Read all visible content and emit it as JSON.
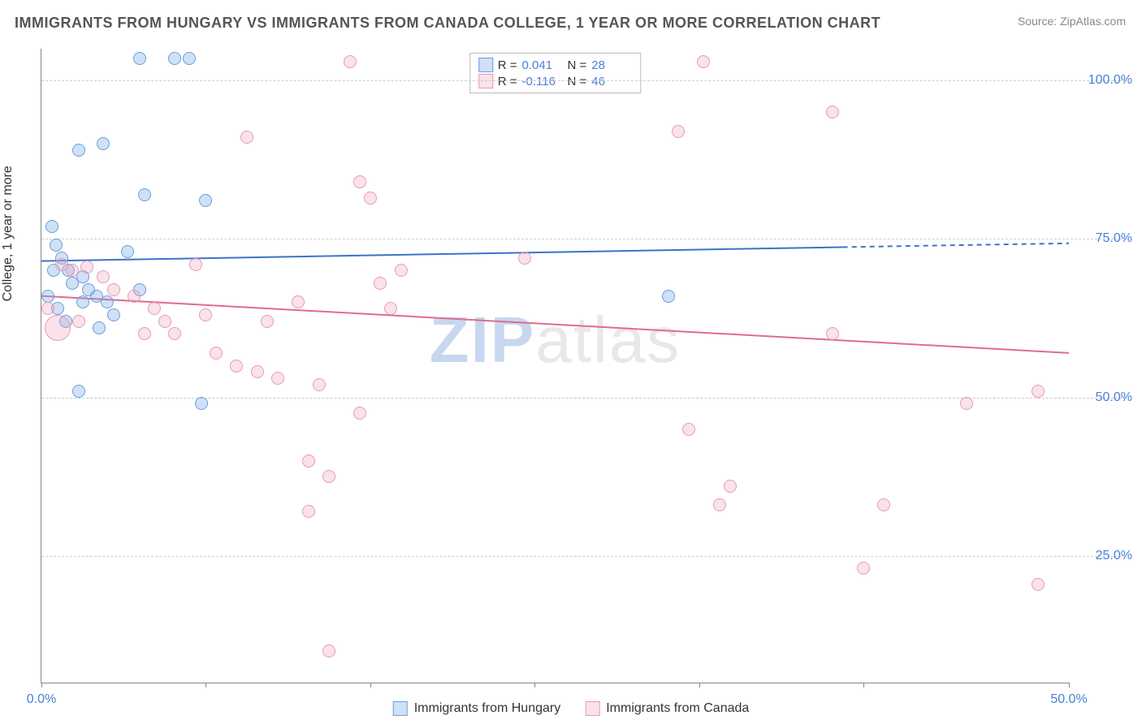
{
  "title": "IMMIGRANTS FROM HUNGARY VS IMMIGRANTS FROM CANADA COLLEGE, 1 YEAR OR MORE CORRELATION CHART",
  "source_label": "Source:",
  "source_name": "ZipAtlas.com",
  "y_axis_label": "College, 1 year or more",
  "watermark": {
    "part1": "ZIP",
    "part2": "atlas"
  },
  "chart": {
    "type": "scatter",
    "background_color": "#ffffff",
    "grid_color": "#cccccc",
    "axis_color": "#888888",
    "tick_label_color": "#4a7fd8",
    "x_range": [
      0,
      50
    ],
    "y_range": [
      5,
      105
    ],
    "x_ticks": [
      0,
      8,
      16,
      24,
      32,
      40,
      50
    ],
    "x_tick_labels": {
      "0": "0.0%",
      "50": "50.0%"
    },
    "y_gridlines": [
      25,
      50,
      75,
      100
    ],
    "y_tick_labels": {
      "25": "25.0%",
      "50": "50.0%",
      "75": "75.0%",
      "100": "100.0%"
    },
    "marker_radius": 8,
    "marker_stroke_width": 1.5,
    "series": [
      {
        "id": "hungary",
        "label": "Immigrants from Hungary",
        "fill_color": "rgba(118,168,228,0.35)",
        "stroke_color": "#6a9ed8",
        "trend_color": "#3b73c9",
        "trend_width": 2,
        "trend": {
          "x1": 0,
          "y1": 71.5,
          "x2": 39,
          "y2": 73.7,
          "dash_from_x": 39,
          "dash_to_x": 50,
          "dash_y2": 74.3
        },
        "R": "0.041",
        "N": "28",
        "points": [
          [
            4.8,
            103.5
          ],
          [
            6.5,
            103.5
          ],
          [
            7.2,
            103.5
          ],
          [
            1.8,
            89
          ],
          [
            3.0,
            90
          ],
          [
            5.0,
            82
          ],
          [
            8.0,
            81
          ],
          [
            0.5,
            77
          ],
          [
            0.7,
            74
          ],
          [
            1.0,
            72
          ],
          [
            1.3,
            70
          ],
          [
            1.5,
            68
          ],
          [
            2.0,
            69
          ],
          [
            2.3,
            67
          ],
          [
            2.7,
            66
          ],
          [
            3.2,
            65
          ],
          [
            4.2,
            73
          ],
          [
            4.8,
            67
          ],
          [
            0.8,
            64
          ],
          [
            1.2,
            62
          ],
          [
            2.8,
            61
          ],
          [
            3.5,
            63
          ],
          [
            1.8,
            51
          ],
          [
            7.8,
            49
          ],
          [
            0.3,
            66
          ],
          [
            0.6,
            70
          ],
          [
            2.0,
            65
          ],
          [
            30.5,
            66
          ]
        ]
      },
      {
        "id": "canada",
        "label": "Immigrants from Canada",
        "fill_color": "rgba(240,160,185,0.30)",
        "stroke_color": "#e79ab3",
        "trend_color": "#e06a93",
        "trend_width": 2,
        "trend": {
          "x1": 0,
          "y1": 66,
          "x2": 50,
          "y2": 57
        },
        "R": "-0.116",
        "N": "46",
        "points": [
          [
            15.0,
            103
          ],
          [
            32.2,
            103
          ],
          [
            10.0,
            91
          ],
          [
            31.0,
            92
          ],
          [
            38.5,
            95
          ],
          [
            15.5,
            84
          ],
          [
            16.0,
            81.5
          ],
          [
            1.0,
            71
          ],
          [
            1.5,
            70
          ],
          [
            2.2,
            70.5
          ],
          [
            3.0,
            69
          ],
          [
            3.5,
            67
          ],
          [
            4.5,
            66
          ],
          [
            5.5,
            64
          ],
          [
            6.0,
            62
          ],
          [
            7.5,
            71
          ],
          [
            8.0,
            63
          ],
          [
            11.0,
            62
          ],
          [
            12.5,
            65
          ],
          [
            16.5,
            68
          ],
          [
            17.5,
            70
          ],
          [
            23.5,
            72
          ],
          [
            5.0,
            60
          ],
          [
            6.5,
            60
          ],
          [
            8.5,
            57
          ],
          [
            9.5,
            55
          ],
          [
            10.5,
            54
          ],
          [
            11.5,
            53
          ],
          [
            13.5,
            52
          ],
          [
            15.5,
            47.5
          ],
          [
            17.0,
            64
          ],
          [
            38.5,
            60
          ],
          [
            48.5,
            51
          ],
          [
            45.0,
            49
          ],
          [
            31.5,
            45
          ],
          [
            13.0,
            40
          ],
          [
            14.0,
            37.5
          ],
          [
            33.5,
            36
          ],
          [
            33.0,
            33
          ],
          [
            41.0,
            33
          ],
          [
            40.0,
            23
          ],
          [
            48.5,
            20.5
          ],
          [
            14.0,
            10
          ],
          [
            13.0,
            32
          ],
          [
            0.3,
            64
          ],
          [
            1.8,
            62
          ]
        ],
        "large_points": [
          [
            0.8,
            61,
            16
          ]
        ]
      }
    ]
  },
  "legend_top": {
    "r_label": "R =",
    "n_label": "N ="
  }
}
